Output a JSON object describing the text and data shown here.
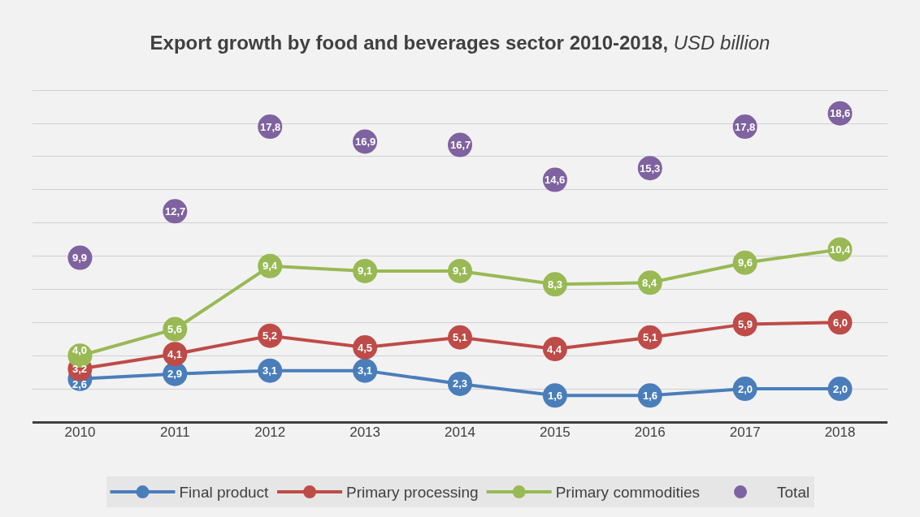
{
  "chart_data": {
    "type": "line",
    "title": "Export growth by food and beverages sector 2010-2018,",
    "subtitle": "USD billion",
    "categories": [
      "2010",
      "2011",
      "2012",
      "2013",
      "2014",
      "2015",
      "2016",
      "2017",
      "2018"
    ],
    "series": [
      {
        "name": "Final product",
        "color": "#4a7ebb",
        "values": [
          2.6,
          2.9,
          3.1,
          3.1,
          2.3,
          1.6,
          1.6,
          2.0,
          2.0
        ],
        "value_labels": [
          "2,6",
          "2,9",
          "3,1",
          "3,1",
          "2,3",
          "1,6",
          "1,6",
          "2,0",
          "2,0"
        ]
      },
      {
        "name": "Primary processing",
        "color": "#be4b48",
        "values": [
          3.2,
          4.1,
          5.2,
          4.5,
          5.1,
          4.4,
          5.1,
          5.9,
          6.0
        ],
        "value_labels": [
          "3,2",
          "4,1",
          "5,2",
          "4,5",
          "5,1",
          "4,4",
          "5,1",
          "5,9",
          "6,0"
        ]
      },
      {
        "name": "Primary commodities",
        "color": "#98b954",
        "values": [
          4.0,
          5.6,
          9.4,
          9.1,
          9.1,
          8.3,
          8.4,
          9.6,
          10.4
        ],
        "value_labels": [
          "4,0",
          "5,6",
          "9,4",
          "9,1",
          "9,1",
          "8,3",
          "8,4",
          "9,6",
          "10,4"
        ]
      },
      {
        "name": "Total",
        "type": "scatter",
        "color": "#7f62a0",
        "values": [
          9.9,
          12.7,
          17.8,
          16.9,
          16.7,
          14.6,
          15.3,
          17.8,
          18.6
        ],
        "value_labels": [
          "9,9",
          "12,7",
          "17,8",
          "16,9",
          "16,7",
          "14,6",
          "15,3",
          "17,8",
          "18,6"
        ]
      }
    ],
    "tick_labels": "x",
    "grid": "y",
    "legend": "bottom",
    "marker": "circle",
    "line_style": "solid"
  }
}
